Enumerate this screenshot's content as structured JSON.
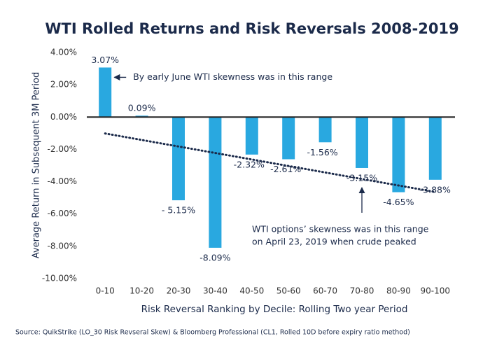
{
  "chart_data": {
    "type": "bar",
    "title": "WTI Rolled Returns and Risk Reversals 2008-2019",
    "x_label": "Risk Reversal Ranking by Decile: Rolling Two year Period",
    "y_label": "Average Return in Subsequent 3M Period",
    "categories": [
      "0-10",
      "10-20",
      "20-30",
      "30-40",
      "40-50",
      "50-60",
      "60-70",
      "70-80",
      "80-90",
      "90-100"
    ],
    "values": [
      3.07,
      0.09,
      -5.15,
      -8.09,
      -2.32,
      -2.61,
      -1.56,
      -3.15,
      -4.65,
      -3.88
    ],
    "value_labels": [
      "3.07%",
      "0.09%",
      "- 5.15%",
      "-8.09%",
      "-2.32%",
      "-2.61%",
      "-1.56%",
      "-3.15%",
      "-4.65%",
      "-3.88%"
    ],
    "color": "#29a8e0",
    "trendline": "linear",
    "ylim": [
      -10,
      4
    ],
    "yticks": [
      {
        "value": 4,
        "label": "4.00%"
      },
      {
        "value": 2,
        "label": "2.00%"
      },
      {
        "value": 0,
        "label": "0.00%"
      },
      {
        "value": -2,
        "label": "-2.00%"
      },
      {
        "value": -4,
        "label": "-4.00%"
      },
      {
        "value": -6,
        "label": "-6.00%"
      },
      {
        "value": -8,
        "label": "-8.00%"
      },
      {
        "value": -10,
        "label": "-10.00%"
      }
    ],
    "annotations": [
      {
        "category": 0,
        "lines": [
          "By early June WTI skewness was in this range"
        ]
      },
      {
        "category": 7,
        "lines": [
          "WTI options’ skewness was in this range",
          "on April 23, 2019 when crude peaked"
        ]
      }
    ],
    "source": "Source: QuikStrike (LO_30 Risk Revseral Skew) & Bloomberg Professional (CL1, Rolled 10D before expiry ratio method)"
  }
}
